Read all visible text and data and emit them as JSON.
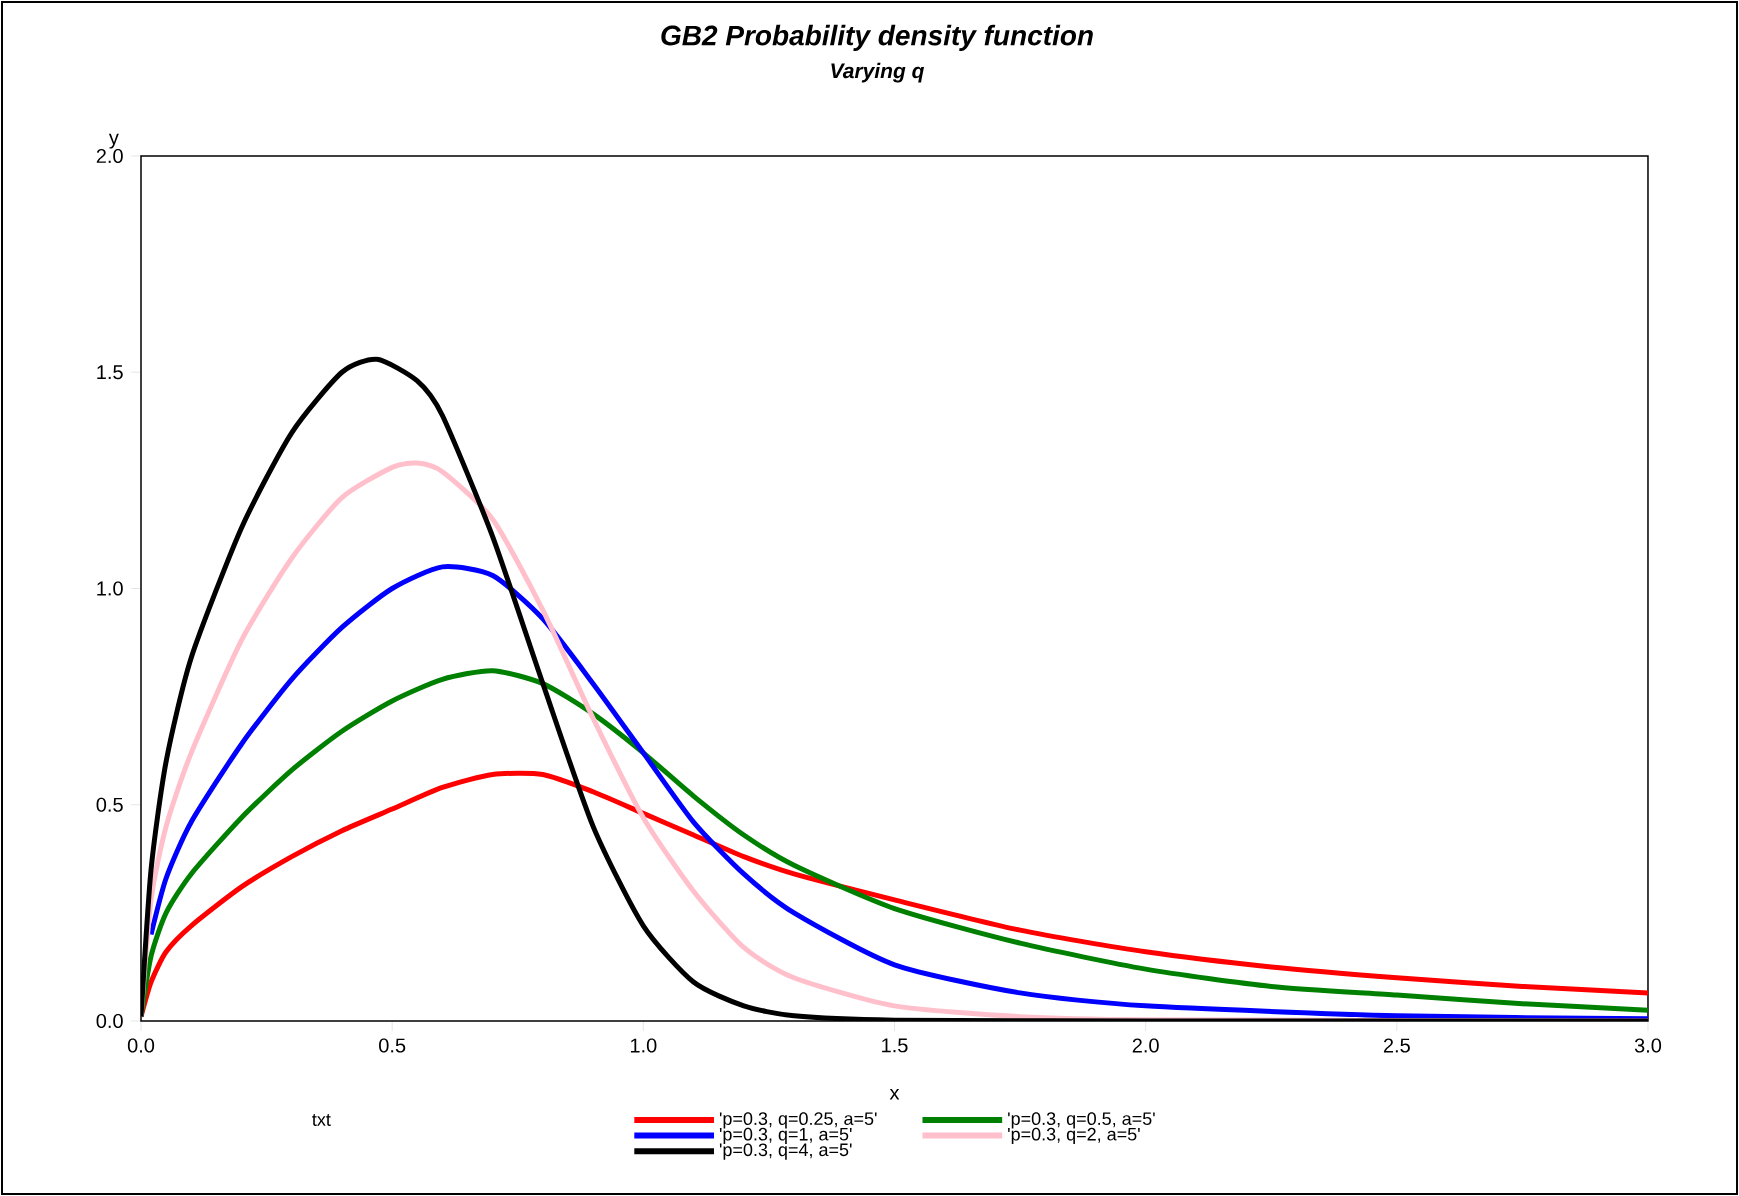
{
  "chart_data": {
    "type": "line",
    "title": "GB2 Probability density function",
    "subtitle": "Varying q",
    "xlabel": "x",
    "ylabel": "y",
    "legend_title": "txt",
    "legend": "bottom",
    "grid": false,
    "marker": "none",
    "line_style": "solid",
    "xlim": [
      0,
      3
    ],
    "ylim": [
      0,
      2
    ],
    "xticks": [
      {
        "value": 0,
        "label": "0.0"
      },
      {
        "value": 0.5,
        "label": "0.5"
      },
      {
        "value": 1,
        "label": "1.0"
      },
      {
        "value": 1.5,
        "label": "1.5"
      },
      {
        "value": 2,
        "label": "2.0"
      },
      {
        "value": 2.5,
        "label": "2.5"
      },
      {
        "value": 3,
        "label": "3.0"
      }
    ],
    "yticks": [
      {
        "value": 0,
        "label": "0.0"
      },
      {
        "value": 0.5,
        "label": "0.5"
      },
      {
        "value": 1,
        "label": "1.0"
      },
      {
        "value": 1.5,
        "label": "1.5"
      },
      {
        "value": 2,
        "label": "2.0"
      }
    ],
    "series": [
      {
        "name": "'p=0.3, q=0.25, a=5'",
        "color": "#ff0000",
        "x": [
          0,
          0.02,
          0.05,
          0.1,
          0.2,
          0.3,
          0.4,
          0.5,
          0.6,
          0.7,
          0.8,
          0.9,
          1.0,
          1.1,
          1.2,
          1.3,
          1.5,
          1.75,
          2.0,
          2.25,
          2.5,
          2.75,
          3.0
        ],
        "values": [
          0.01,
          0.09,
          0.16,
          0.22,
          0.31,
          0.38,
          0.44,
          0.49,
          0.54,
          0.57,
          0.57,
          0.53,
          0.48,
          0.43,
          0.38,
          0.34,
          0.28,
          0.21,
          0.16,
          0.125,
          0.1,
          0.08,
          0.065
        ]
      },
      {
        "name": "'p=0.3, q=0.5, a=5'",
        "color": "#008000",
        "x": [
          0,
          0.02,
          0.05,
          0.1,
          0.2,
          0.3,
          0.4,
          0.5,
          0.6,
          0.7,
          0.8,
          0.9,
          1.0,
          1.1,
          1.2,
          1.3,
          1.5,
          1.75,
          2.0,
          2.25,
          2.5,
          2.75,
          3.0
        ],
        "values": [
          0.01,
          0.15,
          0.25,
          0.34,
          0.47,
          0.58,
          0.67,
          0.74,
          0.79,
          0.81,
          0.78,
          0.71,
          0.62,
          0.52,
          0.43,
          0.36,
          0.26,
          0.18,
          0.12,
          0.08,
          0.06,
          0.04,
          0.025
        ]
      },
      {
        "name": "'p=0.3, q=1, a=5'",
        "color": "#0000ff",
        "x": [
          0.02,
          0.05,
          0.1,
          0.2,
          0.3,
          0.4,
          0.5,
          0.6,
          0.7,
          0.8,
          0.9,
          1.0,
          1.1,
          1.2,
          1.3,
          1.5,
          1.75,
          2.0,
          2.5,
          3.0
        ],
        "values": [
          0.2,
          0.33,
          0.46,
          0.64,
          0.79,
          0.91,
          1.0,
          1.05,
          1.03,
          0.93,
          0.78,
          0.62,
          0.46,
          0.34,
          0.25,
          0.13,
          0.065,
          0.035,
          0.012,
          0.005
        ]
      },
      {
        "name": "'p=0.3, q=2, a=5'",
        "color": "#ffc0cb",
        "x": [
          0,
          0.02,
          0.05,
          0.1,
          0.2,
          0.3,
          0.4,
          0.5,
          0.55,
          0.6,
          0.7,
          0.8,
          0.9,
          1.0,
          1.1,
          1.2,
          1.3,
          1.5,
          1.75,
          2.0,
          3.0
        ],
        "values": [
          0.01,
          0.28,
          0.45,
          0.62,
          0.88,
          1.07,
          1.21,
          1.28,
          1.29,
          1.27,
          1.16,
          0.95,
          0.7,
          0.47,
          0.3,
          0.17,
          0.1,
          0.035,
          0.01,
          0.003,
          0
        ]
      },
      {
        "name": "'p=0.3, q=4, a=5'",
        "color": "#000000",
        "x": [
          0,
          0.02,
          0.05,
          0.1,
          0.2,
          0.3,
          0.4,
          0.47,
          0.55,
          0.6,
          0.7,
          0.8,
          0.9,
          1.0,
          1.1,
          1.2,
          1.3,
          1.5,
          2.0,
          3.0
        ],
        "values": [
          0.01,
          0.35,
          0.6,
          0.84,
          1.14,
          1.36,
          1.5,
          1.53,
          1.48,
          1.4,
          1.12,
          0.78,
          0.45,
          0.22,
          0.09,
          0.035,
          0.012,
          0.002,
          0,
          0
        ]
      }
    ]
  }
}
